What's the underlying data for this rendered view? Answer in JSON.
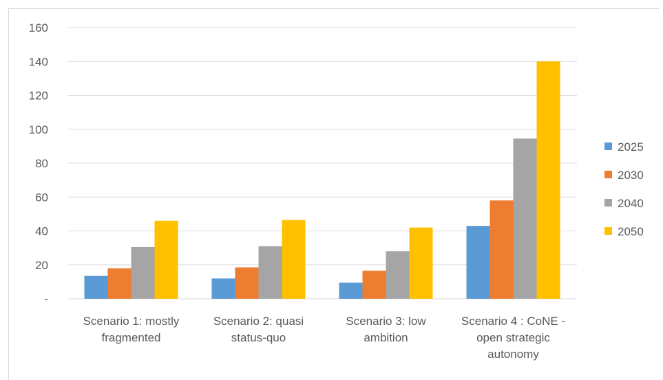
{
  "chart_data": {
    "type": "bar",
    "categories": [
      [
        "Scenario 1: mostly",
        "fragmented"
      ],
      [
        "Scenario 2: quasi",
        "status-quo"
      ],
      [
        "Scenario 3: low",
        "ambition"
      ],
      [
        "Scenario 4 : CoNE -",
        "open strategic",
        "autonomy"
      ]
    ],
    "series": [
      {
        "name": "2025",
        "color": "#5b9bd5",
        "values": [
          13.5,
          12,
          9.5,
          43
        ]
      },
      {
        "name": "2030",
        "color": "#ed7d31",
        "values": [
          18,
          18.5,
          16.5,
          58
        ]
      },
      {
        "name": "2040",
        "color": "#a5a5a5",
        "values": [
          30.5,
          31,
          28,
          94.5
        ]
      },
      {
        "name": "2050",
        "color": "#ffc000",
        "values": [
          46,
          46.5,
          42,
          140
        ]
      }
    ],
    "ylim": [
      0,
      160
    ],
    "yticks": [
      0,
      20,
      40,
      60,
      80,
      100,
      120,
      140,
      160
    ],
    "ytick_labels": [
      "-",
      "20",
      "40",
      "60",
      "80",
      "100",
      "120",
      "140",
      "160"
    ],
    "grid": true,
    "legend_position": "right"
  }
}
